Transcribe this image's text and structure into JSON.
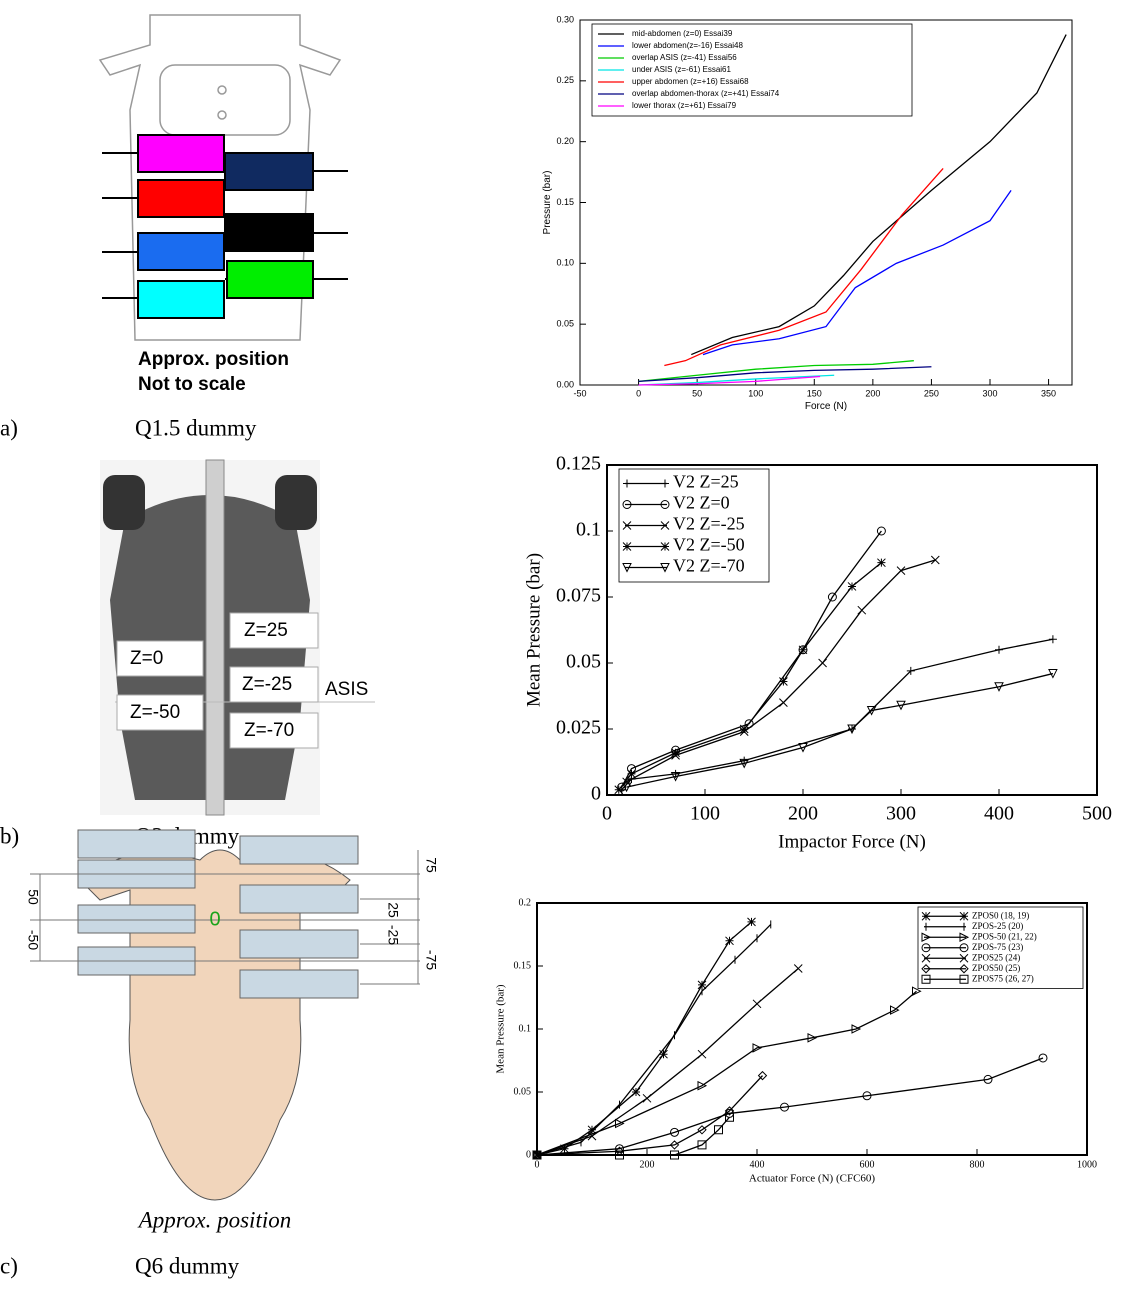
{
  "figure": {
    "panels": [
      {
        "label": "a)",
        "caption": "Q1.5 dummy",
        "notes": [
          "Approx. position",
          "Not to scale"
        ]
      },
      {
        "label": "b)",
        "caption": "Q3 dummy",
        "notes": [
          "Z=25",
          "Z=0",
          "Z=-25",
          "ASIS",
          "Z=-50",
          "Z=-70"
        ]
      },
      {
        "label": "c)",
        "caption": "Q6 dummy",
        "notes": [
          "75",
          "50",
          "0",
          "25",
          "-25",
          "-50",
          "-75",
          "Approx. position"
        ]
      }
    ]
  },
  "chart_data": [
    {
      "type": "line",
      "xlabel": "Force (N)",
      "ylabel": "Pressure (bar)",
      "legend": "top-left",
      "xlim": [
        -50,
        370
      ],
      "ylim": [
        0,
        0.3
      ],
      "xticks": [
        -50,
        0,
        50,
        100,
        150,
        200,
        250,
        300,
        350
      ],
      "yticks": [
        {
          "value": 0,
          "label": "0.00"
        },
        0.05,
        {
          "value": 0.1,
          "label": "0.10"
        },
        0.15,
        {
          "value": 0.2,
          "label": "0.20"
        },
        0.25,
        {
          "value": 0.3,
          "label": "0.30"
        }
      ],
      "series": [
        {
          "name": "mid-abdomen (z=0) Essai39",
          "color": "#000000",
          "x": [
            45,
            80,
            120,
            150,
            175,
            200,
            250,
            300,
            340,
            365
          ],
          "values": [
            0.025,
            0.039,
            0.048,
            0.065,
            0.09,
            0.118,
            0.16,
            0.2,
            0.24,
            0.288
          ]
        },
        {
          "name": "lower abdomen(z=-16) Essai48",
          "color": "#0000ff",
          "x": [
            55,
            80,
            120,
            160,
            185,
            220,
            260,
            300,
            318
          ],
          "values": [
            0.025,
            0.033,
            0.038,
            0.048,
            0.08,
            0.1,
            0.115,
            0.135,
            0.16
          ]
        },
        {
          "name": "overlap ASIS  (z=-41) Essai56",
          "color": "#00cc00",
          "x": [
            0,
            50,
            100,
            150,
            200,
            235
          ],
          "values": [
            0.003,
            0.008,
            0.013,
            0.016,
            0.017,
            0.02
          ]
        },
        {
          "name": "under ASIS (z=-61) Essai61",
          "color": "#00e5e5",
          "x": [
            0,
            50,
            100,
            167
          ],
          "values": [
            0,
            0.002,
            0.005,
            0.008
          ]
        },
        {
          "name": "upper abdomen (z=+16) Essai68",
          "color": "#ff0000",
          "x": [
            22,
            40,
            70,
            120,
            160,
            190,
            225,
            260
          ],
          "values": [
            0.016,
            0.02,
            0.033,
            0.045,
            0.06,
            0.095,
            0.14,
            0.178
          ]
        },
        {
          "name": "overlap abdomen-thorax (z=+41) Essai74",
          "color": "#000080",
          "x": [
            0,
            50,
            100,
            150,
            200,
            250
          ],
          "values": [
            0.003,
            0.006,
            0.01,
            0.012,
            0.013,
            0.015
          ]
        },
        {
          "name": "lower thorax (z=+61) Essai79",
          "color": "#ff00ff",
          "x": [
            0,
            50,
            100,
            155
          ],
          "values": [
            0,
            0.001,
            0.003,
            0.007
          ]
        }
      ]
    },
    {
      "type": "line",
      "xlabel": "Impactor Force (N)",
      "ylabel": "Mean Pressure (bar)",
      "legend": "top-left",
      "xlim": [
        0,
        500
      ],
      "ylim": [
        0,
        0.125
      ],
      "xticks": [
        0,
        100,
        200,
        300,
        400,
        500
      ],
      "yticks": [
        0,
        0.025,
        0.05,
        0.075,
        0.1,
        0.125
      ],
      "series": [
        {
          "name": "V2 Z=25",
          "color": "#000000",
          "marker": "plus",
          "x": [
            15,
            25,
            70,
            140,
            250,
            310,
            400,
            455
          ],
          "values": [
            0.002,
            0.006,
            0.008,
            0.013,
            0.025,
            0.047,
            0.055,
            0.059
          ]
        },
        {
          "name": "V2 Z=0",
          "color": "#000000",
          "marker": "circle",
          "x": [
            15,
            25,
            70,
            145,
            200,
            230,
            280
          ],
          "values": [
            0.003,
            0.01,
            0.017,
            0.027,
            0.055,
            0.075,
            0.1
          ]
        },
        {
          "name": "V2 Z=-25",
          "color": "#000000",
          "marker": "x",
          "x": [
            20,
            70,
            140,
            180,
            220,
            260,
            300,
            335
          ],
          "values": [
            0.005,
            0.015,
            0.024,
            0.035,
            0.05,
            0.07,
            0.085,
            0.089
          ]
        },
        {
          "name": "V2 Z=-50",
          "color": "#000000",
          "marker": "star",
          "x": [
            12,
            25,
            70,
            140,
            180,
            200,
            250,
            280
          ],
          "values": [
            0.002,
            0.008,
            0.016,
            0.025,
            0.043,
            0.055,
            0.079,
            0.088
          ]
        },
        {
          "name": "V2 Z=-70",
          "color": "#000000",
          "marker": "tri-down",
          "x": [
            20,
            70,
            140,
            200,
            250,
            270,
            300,
            400,
            455
          ],
          "values": [
            0.003,
            0.007,
            0.012,
            0.018,
            0.025,
            0.032,
            0.034,
            0.041,
            0.046
          ]
        }
      ]
    },
    {
      "type": "line",
      "xlabel": "Actuator Force (N) (CFC60)",
      "ylabel": "Mean Pressure (bar)",
      "legend": "top-right",
      "xlim": [
        0,
        1000
      ],
      "ylim": [
        0,
        0.2
      ],
      "xticks": [
        0,
        200,
        400,
        600,
        800,
        1000
      ],
      "yticks": [
        0,
        0.05,
        0.1,
        0.15,
        0.2
      ],
      "series": [
        {
          "name": "ZPOS0 (18, 19)",
          "color": "#000000",
          "marker": "star",
          "x": [
            0,
            50,
            100,
            180,
            230,
            300,
            350,
            390
          ],
          "values": [
            0,
            0.005,
            0.02,
            0.05,
            0.08,
            0.135,
            0.17,
            0.185
          ]
        },
        {
          "name": "ZPOS-25 (20)",
          "color": "#000000",
          "marker": "bar",
          "x": [
            0,
            80,
            150,
            250,
            300,
            360,
            400,
            425
          ],
          "values": [
            0,
            0.01,
            0.04,
            0.095,
            0.13,
            0.155,
            0.172,
            0.183
          ]
        },
        {
          "name": "ZPOS-50 (21, 22)",
          "color": "#000000",
          "marker": "tri-right",
          "x": [
            0,
            150,
            300,
            400,
            500,
            580,
            650,
            690
          ],
          "values": [
            0,
            0.025,
            0.055,
            0.085,
            0.093,
            0.1,
            0.115,
            0.13
          ]
        },
        {
          "name": "ZPOS-75 (23)",
          "color": "#000000",
          "marker": "circle",
          "x": [
            0,
            150,
            250,
            350,
            450,
            600,
            820,
            920
          ],
          "values": [
            0,
            0.005,
            0.018,
            0.033,
            0.038,
            0.047,
            0.06,
            0.077
          ]
        },
        {
          "name": "ZPOS25 (24)",
          "color": "#000000",
          "marker": "x",
          "x": [
            0,
            100,
            200,
            300,
            400,
            475
          ],
          "values": [
            0,
            0.015,
            0.045,
            0.08,
            0.12,
            0.148
          ]
        },
        {
          "name": "ZPOS50 (25)",
          "color": "#000000",
          "marker": "diamond",
          "x": [
            0,
            150,
            250,
            300,
            350,
            410
          ],
          "values": [
            0,
            0.003,
            0.008,
            0.02,
            0.035,
            0.063
          ]
        },
        {
          "name": "ZPOS75 (26, 27)",
          "color": "#000000",
          "marker": "square",
          "x": [
            0,
            150,
            250,
            300,
            330,
            350
          ],
          "values": [
            0,
            0,
            0,
            0.008,
            0.02,
            0.03
          ]
        }
      ]
    }
  ]
}
